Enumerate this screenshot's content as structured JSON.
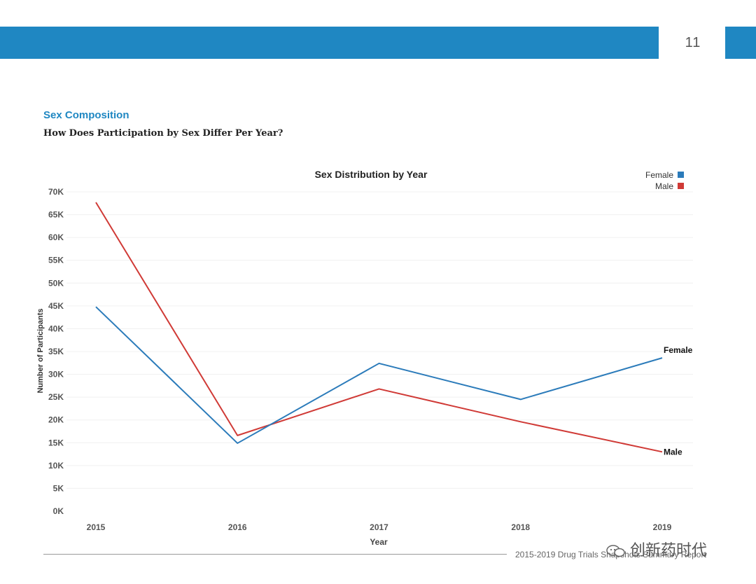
{
  "header": {
    "page_number": "11"
  },
  "section": {
    "title": "Sex Composition",
    "subtitle": "How Does Participation by Sex Differ Per Year?"
  },
  "chart_data": {
    "type": "line",
    "title": "Sex Distribution by Year",
    "xlabel": "Year",
    "ylabel": "Number of Participants",
    "categories": [
      "2015",
      "2016",
      "2017",
      "2018",
      "2019"
    ],
    "y_ticks": [
      "0K",
      "5K",
      "10K",
      "15K",
      "20K",
      "25K",
      "30K",
      "35K",
      "40K",
      "45K",
      "50K",
      "55K",
      "60K",
      "65K",
      "70K"
    ],
    "ylim": [
      0,
      70000
    ],
    "grid": true,
    "legend_position": "top-right",
    "series": [
      {
        "name": "Female",
        "color": "#2b7bba",
        "values": [
          44800,
          14900,
          32400,
          24500,
          33600
        ],
        "end_label": "Female"
      },
      {
        "name": "Male",
        "color": "#d03a36",
        "values": [
          67700,
          16600,
          26800,
          19600,
          13000
        ],
        "end_label": "Male"
      }
    ]
  },
  "footer": {
    "text": "2015-2019 Drug Trials Snapshots Summary Report",
    "watermark": "创新药时代"
  }
}
